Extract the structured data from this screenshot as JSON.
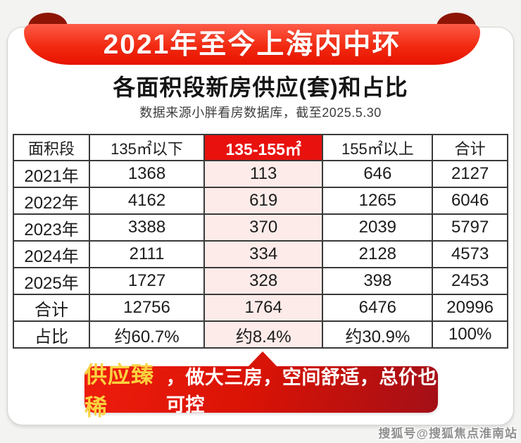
{
  "page": {
    "ribbon_title": "2021年至今上海内中环",
    "title": "各面积段新房供应(套)和占比",
    "subtitle": "数据来源小胖看房数据库，截至2025.5.30"
  },
  "chart_data": {
    "type": "table",
    "title": "2021年至今上海内中环 各面积段新房供应(套)和占比",
    "source_note": "数据来源小胖看房数据库，截至2025.5.30",
    "columns": [
      "面积段",
      "135㎡以下",
      "135-155㎡",
      "155㎡以上",
      "合计"
    ],
    "highlight_column_index": 2,
    "rows": [
      {
        "label": "2021年",
        "values": [
          1368,
          113,
          646,
          2127
        ]
      },
      {
        "label": "2022年",
        "values": [
          4162,
          619,
          1265,
          6046
        ]
      },
      {
        "label": "2023年",
        "values": [
          3388,
          370,
          2039,
          5797
        ]
      },
      {
        "label": "2024年",
        "values": [
          2111,
          334,
          2128,
          4573
        ]
      },
      {
        "label": "2025年",
        "values": [
          1727,
          328,
          398,
          2453
        ]
      },
      {
        "label": "合计",
        "values": [
          12756,
          1764,
          6476,
          20996
        ]
      },
      {
        "label": "占比",
        "values": [
          "约60.7%",
          "约8.4%",
          "约30.9%",
          "100%"
        ]
      }
    ]
  },
  "callout": {
    "highlight": "供应臻稀",
    "rest": "，做大三房，空间舒适，总价也可控"
  },
  "watermark": "搜狐号@搜狐焦点淮南站",
  "colors": {
    "ribbon_red": "#f22a10",
    "ribbon_fold_dark": "#8e1505",
    "highlight_header_bg": "#e8110e",
    "highlight_cell_bg": "#fcebe9",
    "callout_gradient_start": "#ee1d0d",
    "callout_gradient_end": "#a30f17",
    "callout_gold": "#fad23f",
    "table_border": "#3a3a3a"
  }
}
